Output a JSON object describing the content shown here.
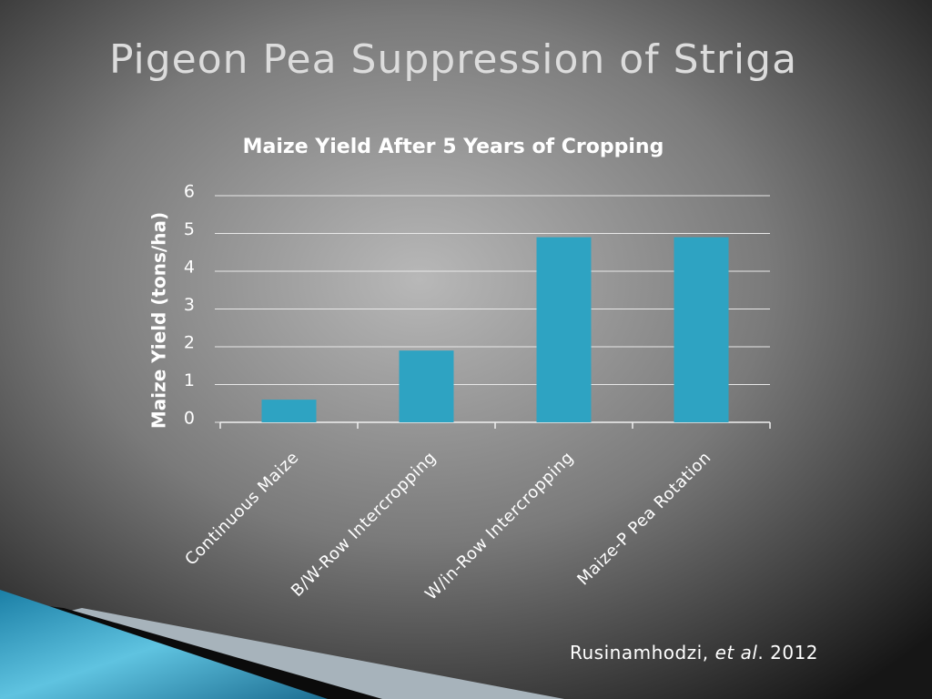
{
  "title": "Pigeon Pea Suppression of Striga",
  "citation": {
    "author": "Rusinamhodzi,",
    "etal": "et al",
    "year": ". 2012"
  },
  "chart_data": {
    "type": "bar",
    "title": "Maize Yield After 5 Years of Cropping",
    "y_label": "Maize Yield (tons/ha)",
    "categories": [
      "Continuous Maize",
      "B/W-Row Intercropping",
      "W/in-Row Intercropping",
      "Maize-P Pea Rotation"
    ],
    "values": [
      0.6,
      1.9,
      4.9,
      4.9
    ],
    "color": "#2ea3c2",
    "ylim": [
      0,
      6
    ],
    "yticks": [
      0,
      1,
      2,
      3,
      4,
      5,
      6
    ],
    "grid": true
  }
}
